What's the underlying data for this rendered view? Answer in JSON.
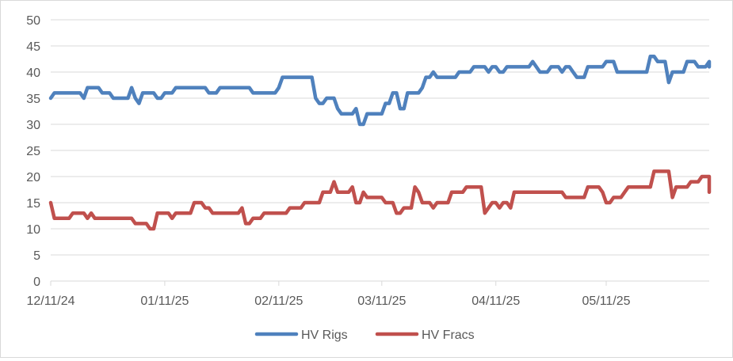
{
  "chart_data": {
    "type": "line",
    "title": "",
    "xlabel": "",
    "ylabel": "",
    "ylim": [
      0,
      50
    ],
    "yticks": [
      0,
      5,
      10,
      15,
      20,
      25,
      30,
      35,
      40,
      45,
      50
    ],
    "xlim": [
      "2024-12-11",
      "2025-06-08"
    ],
    "xticks": [
      {
        "date": "2024-12-11",
        "label": "12/11/24"
      },
      {
        "date": "2025-01-11",
        "label": "01/11/25"
      },
      {
        "date": "2025-02-11",
        "label": "02/11/25"
      },
      {
        "date": "2025-03-11",
        "label": "03/11/25"
      },
      {
        "date": "2025-04-11",
        "label": "04/11/25"
      },
      {
        "date": "2025-05-11",
        "label": "05/11/25"
      }
    ],
    "grid": "horizontal",
    "legend_position": "bottom",
    "series": [
      {
        "name": "HV Rigs",
        "color": "#4f81bd",
        "points": [
          [
            "2024-12-11",
            35
          ],
          [
            "2024-12-12",
            36
          ],
          [
            "2024-12-19",
            36
          ],
          [
            "2024-12-20",
            35
          ],
          [
            "2024-12-21",
            37
          ],
          [
            "2024-12-24",
            37
          ],
          [
            "2024-12-25",
            36
          ],
          [
            "2024-12-27",
            36
          ],
          [
            "2024-12-28",
            35
          ],
          [
            "2025-01-01",
            35
          ],
          [
            "2025-01-02",
            37
          ],
          [
            "2025-01-03",
            35
          ],
          [
            "2025-01-04",
            34
          ],
          [
            "2025-01-05",
            36
          ],
          [
            "2025-01-08",
            36
          ],
          [
            "2025-01-09",
            35
          ],
          [
            "2025-01-10",
            35
          ],
          [
            "2025-01-11",
            36
          ],
          [
            "2025-01-13",
            36
          ],
          [
            "2025-01-14",
            37
          ],
          [
            "2025-01-22",
            37
          ],
          [
            "2025-01-23",
            36
          ],
          [
            "2025-01-25",
            36
          ],
          [
            "2025-01-26",
            37
          ],
          [
            "2025-02-03",
            37
          ],
          [
            "2025-02-04",
            36
          ],
          [
            "2025-02-10",
            36
          ],
          [
            "2025-02-11",
            37
          ],
          [
            "2025-02-12",
            39
          ],
          [
            "2025-02-20",
            39
          ],
          [
            "2025-02-21",
            35
          ],
          [
            "2025-02-22",
            34
          ],
          [
            "2025-02-23",
            34
          ],
          [
            "2025-02-24",
            35
          ],
          [
            "2025-02-26",
            35
          ],
          [
            "2025-02-27",
            33
          ],
          [
            "2025-02-28",
            32
          ],
          [
            "2025-03-03",
            32
          ],
          [
            "2025-03-04",
            33
          ],
          [
            "2025-03-05",
            30
          ],
          [
            "2025-03-06",
            30
          ],
          [
            "2025-03-07",
            32
          ],
          [
            "2025-03-11",
            32
          ],
          [
            "2025-03-12",
            34
          ],
          [
            "2025-03-13",
            34
          ],
          [
            "2025-03-14",
            36
          ],
          [
            "2025-03-15",
            36
          ],
          [
            "2025-03-16",
            33
          ],
          [
            "2025-03-17",
            33
          ],
          [
            "2025-03-18",
            36
          ],
          [
            "2025-03-21",
            36
          ],
          [
            "2025-03-22",
            37
          ],
          [
            "2025-03-23",
            39
          ],
          [
            "2025-03-24",
            39
          ],
          [
            "2025-03-25",
            40
          ],
          [
            "2025-03-26",
            39
          ],
          [
            "2025-03-31",
            39
          ],
          [
            "2025-04-01",
            40
          ],
          [
            "2025-04-04",
            40
          ],
          [
            "2025-04-05",
            41
          ],
          [
            "2025-04-08",
            41
          ],
          [
            "2025-04-09",
            40
          ],
          [
            "2025-04-10",
            41
          ],
          [
            "2025-04-11",
            41
          ],
          [
            "2025-04-12",
            40
          ],
          [
            "2025-04-13",
            40
          ],
          [
            "2025-04-14",
            41
          ],
          [
            "2025-04-20",
            41
          ],
          [
            "2025-04-21",
            42
          ],
          [
            "2025-04-22",
            41
          ],
          [
            "2025-04-23",
            40
          ],
          [
            "2025-04-25",
            40
          ],
          [
            "2025-04-26",
            41
          ],
          [
            "2025-04-28",
            41
          ],
          [
            "2025-04-29",
            40
          ],
          [
            "2025-04-30",
            41
          ],
          [
            "2025-05-01",
            41
          ],
          [
            "2025-05-02",
            40
          ],
          [
            "2025-05-03",
            39
          ],
          [
            "2025-05-05",
            39
          ],
          [
            "2025-05-06",
            41
          ],
          [
            "2025-05-10",
            41
          ],
          [
            "2025-05-11",
            42
          ],
          [
            "2025-05-13",
            42
          ],
          [
            "2025-05-14",
            40
          ],
          [
            "2025-05-22",
            40
          ],
          [
            "2025-05-23",
            43
          ],
          [
            "2025-05-24",
            43
          ],
          [
            "2025-05-25",
            42
          ],
          [
            "2025-05-27",
            42
          ],
          [
            "2025-05-28",
            38
          ],
          [
            "2025-05-29",
            40
          ],
          [
            "2025-06-01",
            40
          ],
          [
            "2025-06-02",
            42
          ],
          [
            "2025-06-04",
            42
          ],
          [
            "2025-06-05",
            41
          ],
          [
            "2025-06-07",
            41
          ],
          [
            "2025-06-08",
            42
          ],
          [
            "2025-06-09",
            41
          ],
          [
            "2025-06-11",
            41
          ]
        ]
      },
      {
        "name": "HV Fracs",
        "color": "#c0504d",
        "points": [
          [
            "2024-12-11",
            15
          ],
          [
            "2024-12-12",
            12
          ],
          [
            "2024-12-16",
            12
          ],
          [
            "2024-12-17",
            13
          ],
          [
            "2024-12-20",
            13
          ],
          [
            "2024-12-21",
            12
          ],
          [
            "2024-12-22",
            13
          ],
          [
            "2024-12-23",
            12
          ],
          [
            "2025-01-02",
            12
          ],
          [
            "2025-01-03",
            11
          ],
          [
            "2025-01-06",
            11
          ],
          [
            "2025-01-07",
            10
          ],
          [
            "2025-01-08",
            10
          ],
          [
            "2025-01-09",
            13
          ],
          [
            "2025-01-12",
            13
          ],
          [
            "2025-01-13",
            12
          ],
          [
            "2025-01-14",
            13
          ],
          [
            "2025-01-18",
            13
          ],
          [
            "2025-01-19",
            15
          ],
          [
            "2025-01-21",
            15
          ],
          [
            "2025-01-22",
            14
          ],
          [
            "2025-01-23",
            14
          ],
          [
            "2025-01-24",
            13
          ],
          [
            "2025-01-31",
            13
          ],
          [
            "2025-02-01",
            14
          ],
          [
            "2025-02-02",
            11
          ],
          [
            "2025-02-03",
            11
          ],
          [
            "2025-02-04",
            12
          ],
          [
            "2025-02-06",
            12
          ],
          [
            "2025-02-07",
            13
          ],
          [
            "2025-02-13",
            13
          ],
          [
            "2025-02-14",
            14
          ],
          [
            "2025-02-17",
            14
          ],
          [
            "2025-02-18",
            15
          ],
          [
            "2025-02-22",
            15
          ],
          [
            "2025-02-23",
            17
          ],
          [
            "2025-02-25",
            17
          ],
          [
            "2025-02-26",
            19
          ],
          [
            "2025-02-27",
            17
          ],
          [
            "2025-03-02",
            17
          ],
          [
            "2025-03-03",
            18
          ],
          [
            "2025-03-04",
            15
          ],
          [
            "2025-03-05",
            15
          ],
          [
            "2025-03-06",
            17
          ],
          [
            "2025-03-07",
            16
          ],
          [
            "2025-03-11",
            16
          ],
          [
            "2025-03-12",
            15
          ],
          [
            "2025-03-14",
            15
          ],
          [
            "2025-03-15",
            13
          ],
          [
            "2025-03-16",
            13
          ],
          [
            "2025-03-17",
            14
          ],
          [
            "2025-03-19",
            14
          ],
          [
            "2025-03-20",
            18
          ],
          [
            "2025-03-21",
            17
          ],
          [
            "2025-03-22",
            15
          ],
          [
            "2025-03-24",
            15
          ],
          [
            "2025-03-25",
            14
          ],
          [
            "2025-03-26",
            15
          ],
          [
            "2025-03-29",
            15
          ],
          [
            "2025-03-30",
            17
          ],
          [
            "2025-04-02",
            17
          ],
          [
            "2025-04-03",
            18
          ],
          [
            "2025-04-07",
            18
          ],
          [
            "2025-04-08",
            13
          ],
          [
            "2025-04-09",
            14
          ],
          [
            "2025-04-10",
            15
          ],
          [
            "2025-04-11",
            15
          ],
          [
            "2025-04-12",
            14
          ],
          [
            "2025-04-13",
            15
          ],
          [
            "2025-04-14",
            15
          ],
          [
            "2025-04-15",
            14
          ],
          [
            "2025-04-16",
            17
          ],
          [
            "2025-04-29",
            17
          ],
          [
            "2025-04-30",
            16
          ],
          [
            "2025-05-05",
            16
          ],
          [
            "2025-05-06",
            18
          ],
          [
            "2025-05-09",
            18
          ],
          [
            "2025-05-10",
            17
          ],
          [
            "2025-05-11",
            15
          ],
          [
            "2025-05-12",
            15
          ],
          [
            "2025-05-13",
            16
          ],
          [
            "2025-05-15",
            16
          ],
          [
            "2025-05-16",
            17
          ],
          [
            "2025-05-17",
            18
          ],
          [
            "2025-05-23",
            18
          ],
          [
            "2025-05-24",
            21
          ],
          [
            "2025-05-28",
            21
          ],
          [
            "2025-05-29",
            16
          ],
          [
            "2025-05-30",
            18
          ],
          [
            "2025-06-02",
            18
          ],
          [
            "2025-06-03",
            19
          ],
          [
            "2025-06-05",
            19
          ],
          [
            "2025-06-06",
            20
          ],
          [
            "2025-06-09",
            20
          ],
          [
            "2025-06-10",
            18
          ],
          [
            "2025-06-11",
            18
          ],
          [
            "2025-06-12",
            17
          ]
        ]
      }
    ]
  }
}
